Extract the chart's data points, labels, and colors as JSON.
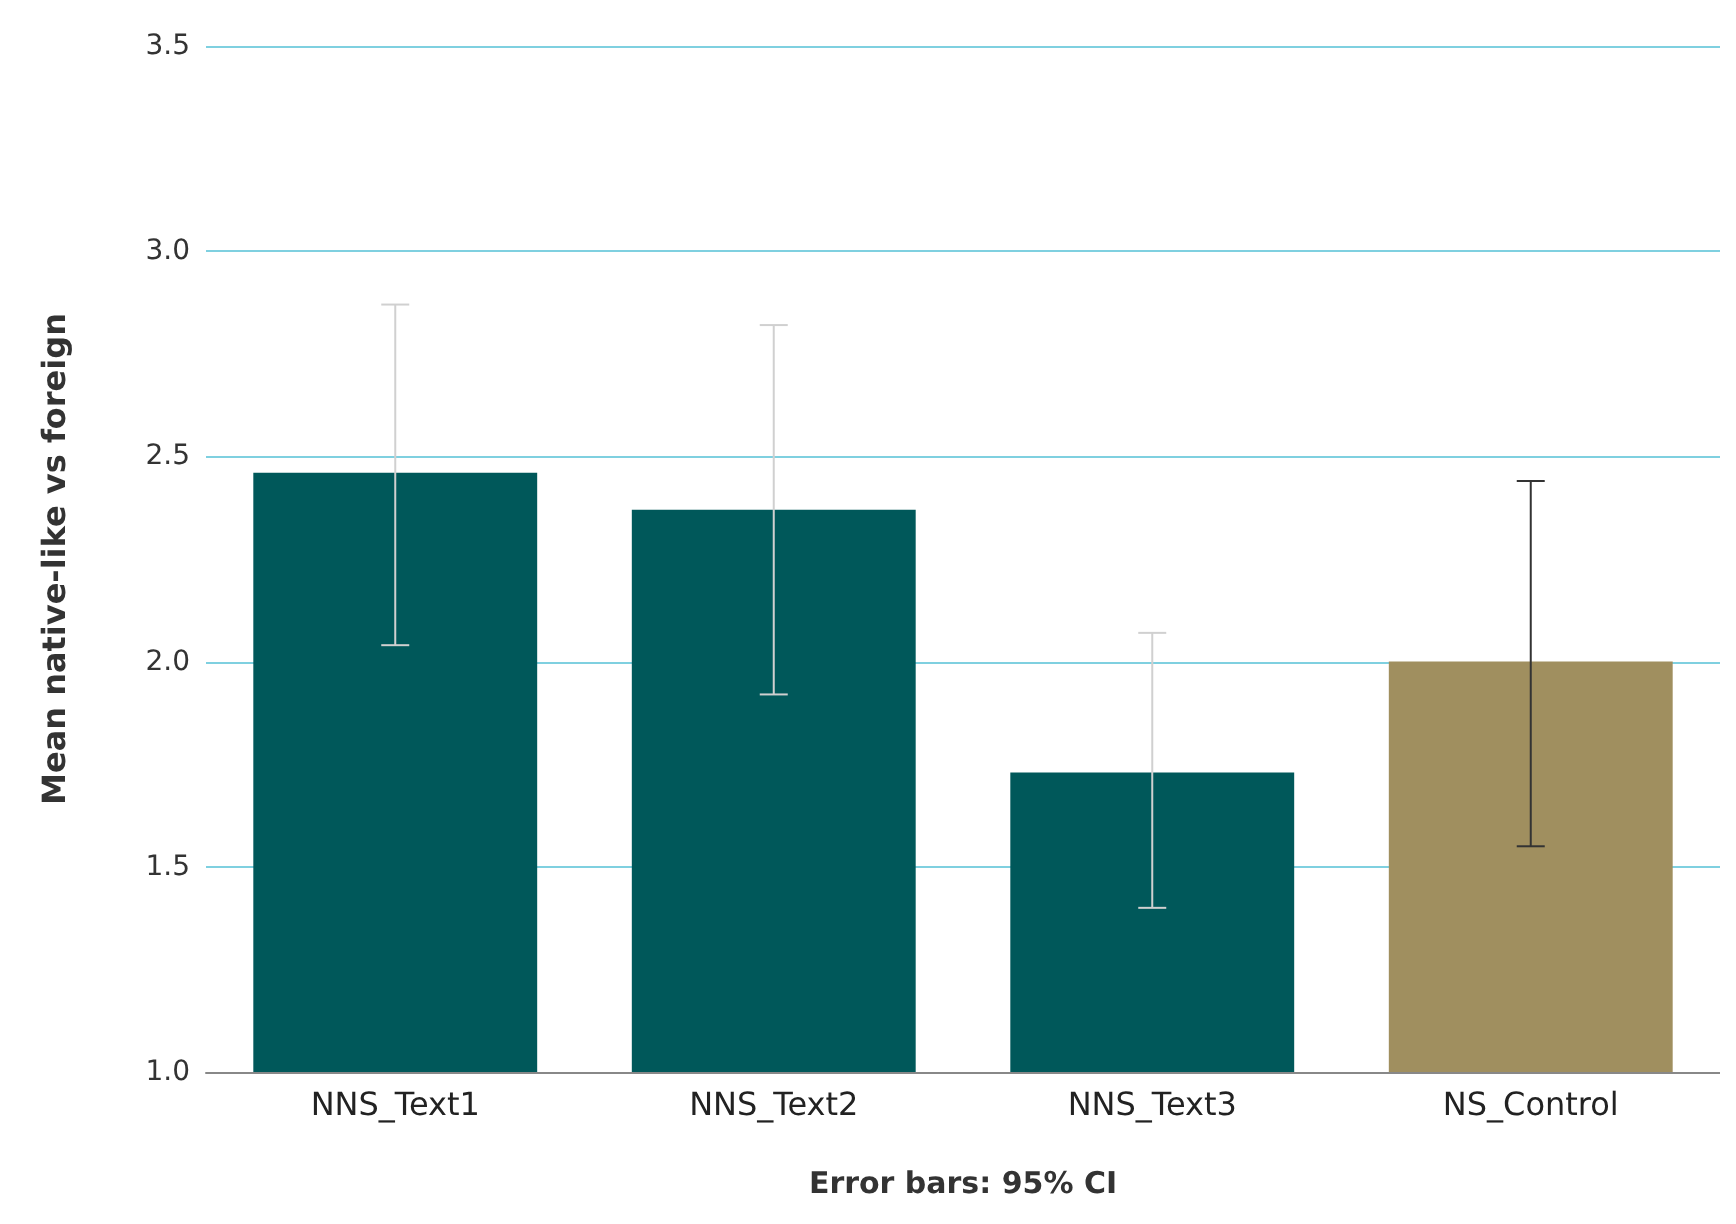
{
  "chart_data": {
    "type": "bar",
    "ylabel": "Mean native-like vs foreign",
    "xlabel": "Error bars: 95% CI",
    "categories": [
      "NNS_Text1",
      "NNS_Text2",
      "NNS_Text3",
      "NS_Control"
    ],
    "values": [
      2.46,
      2.37,
      1.73,
      2.0
    ],
    "colors": [
      "#00585a",
      "#00585a",
      "#00585a",
      "#a08f5f"
    ],
    "errors": [
      [
        2.04,
        2.87
      ],
      [
        1.92,
        2.82
      ],
      [
        1.4,
        2.07
      ],
      [
        1.55,
        2.44
      ]
    ],
    "ylim": [
      1,
      3.5
    ],
    "yticks": [
      {
        "value": 1,
        "label": "1.0"
      },
      {
        "value": 1.5,
        "label": "1.5"
      },
      {
        "value": 2,
        "label": "2.0"
      },
      {
        "value": 2.5,
        "label": "2.5"
      },
      {
        "value": 3,
        "label": "3.0"
      },
      {
        "value": 3.5,
        "label": "3.5"
      }
    ],
    "grid": "y"
  }
}
